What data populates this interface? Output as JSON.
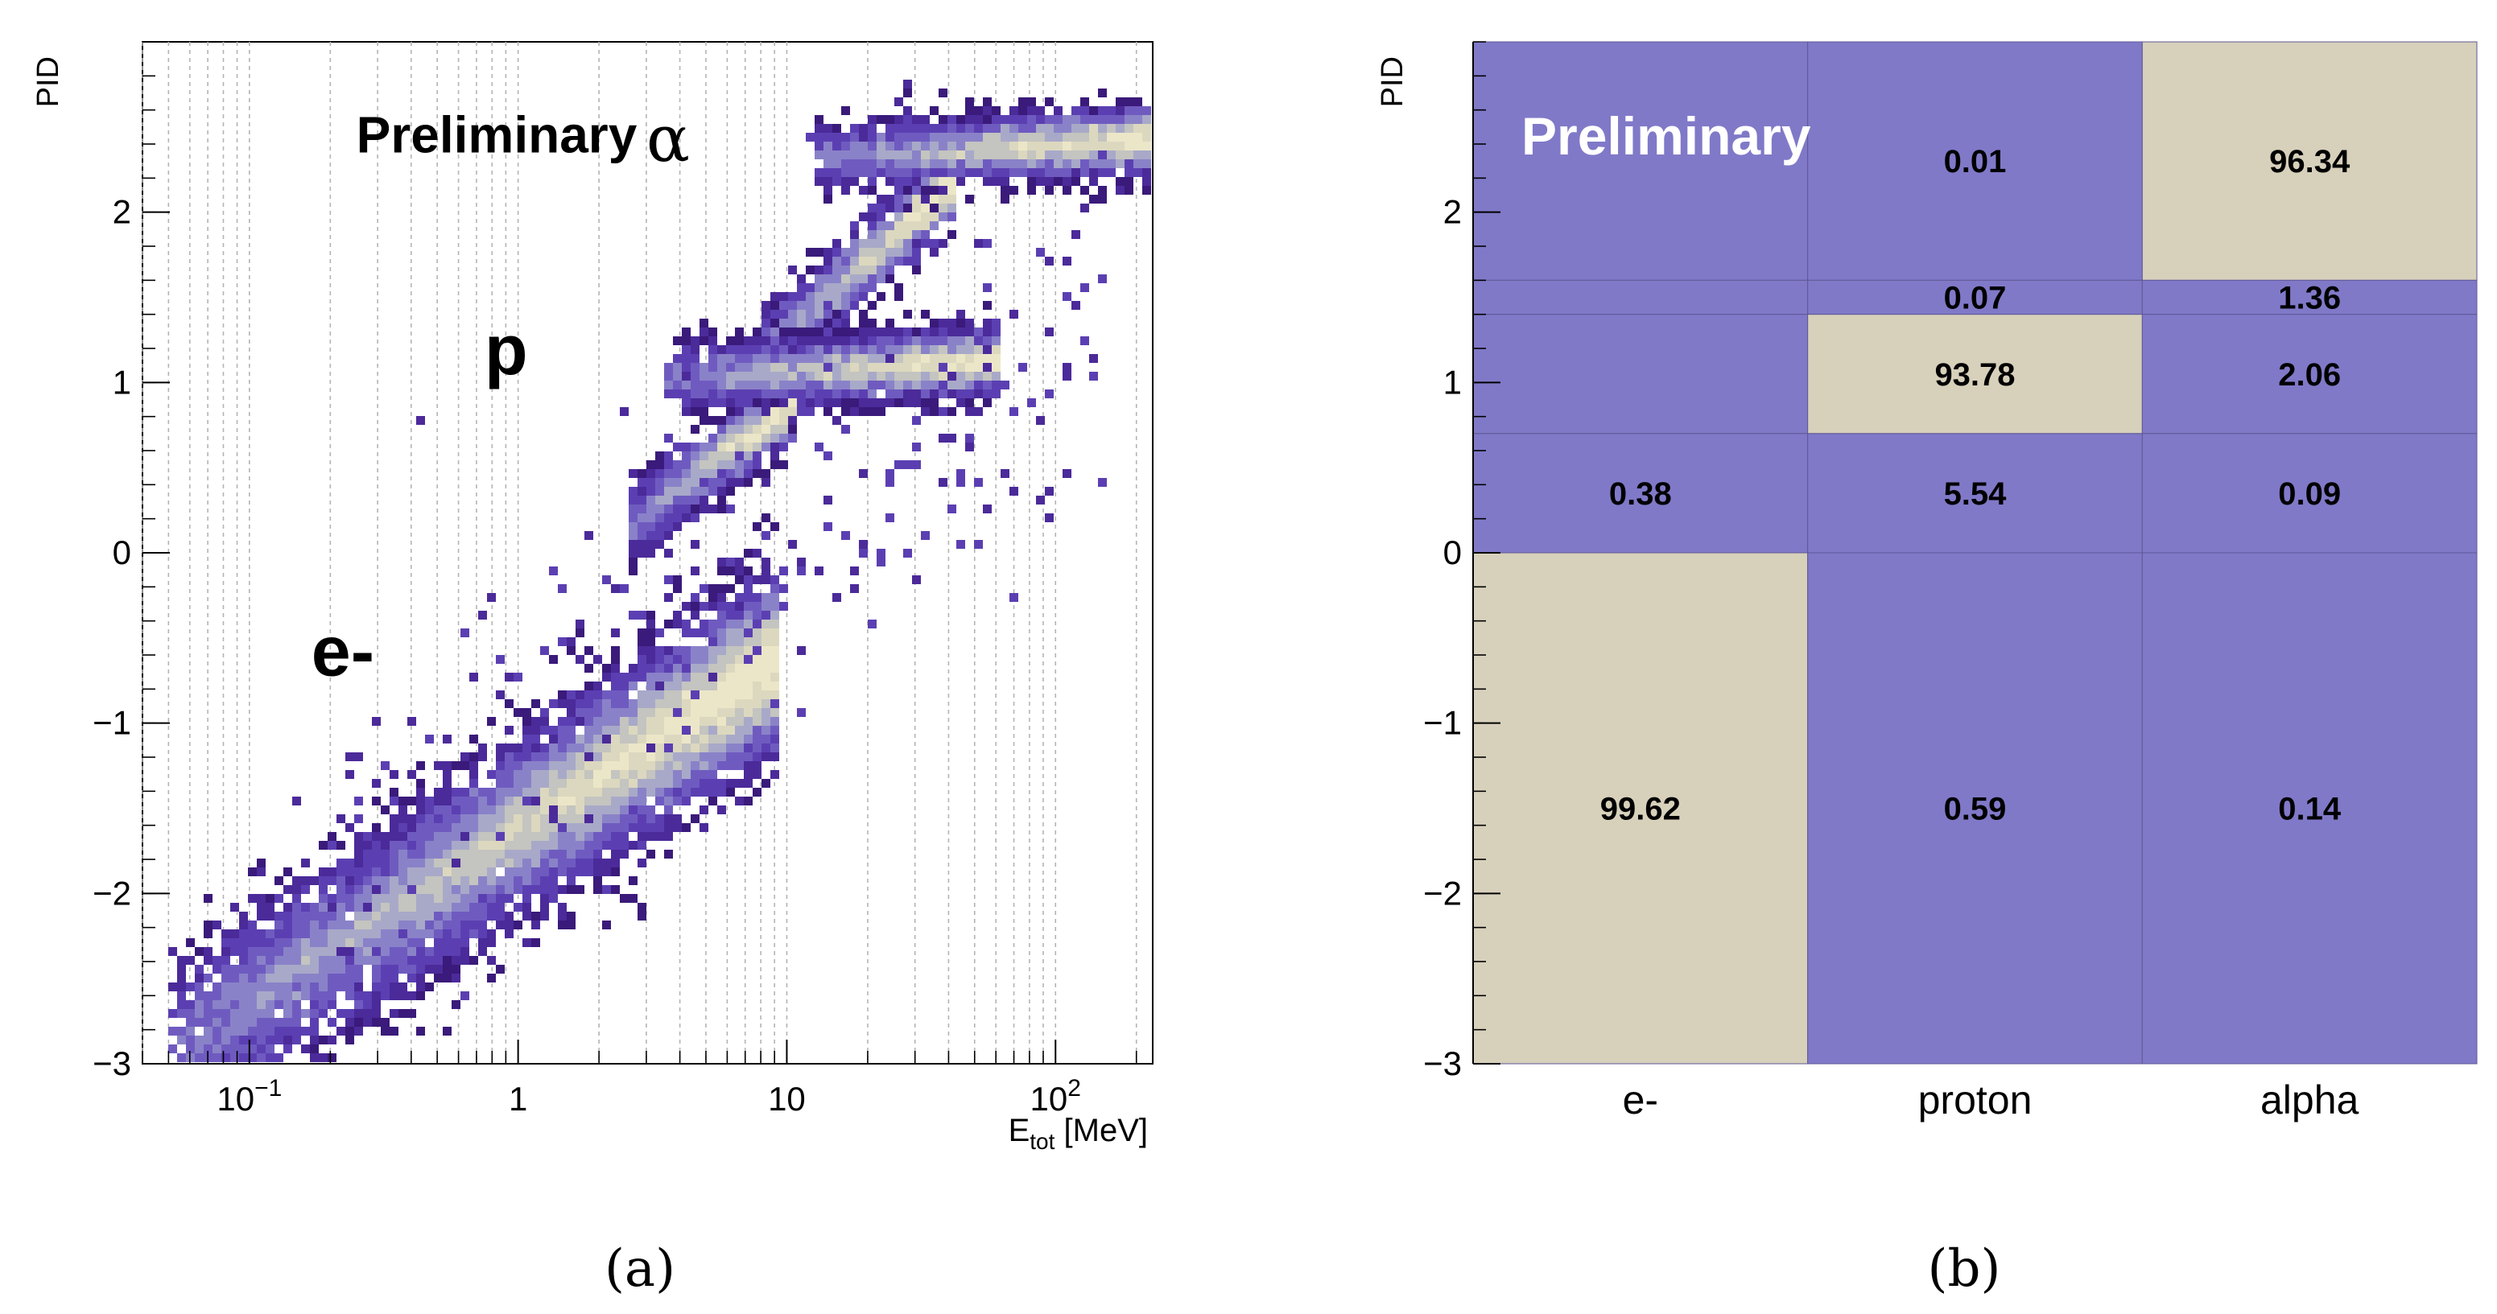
{
  "chart_data": [
    {
      "type": "heatmap",
      "panel_label": "(a)",
      "ylabel": "PID",
      "xlabel_main": "E",
      "xlabel_sub": "tot",
      "xlabel_unit": " [MeV]",
      "xscale": "log",
      "xlim": [
        0.04,
        230
      ],
      "ylim": [
        -3,
        3
      ],
      "grid": "vertical dashed",
      "x_ticks": [
        {
          "value": 0.1,
          "base": "10",
          "exp": "−1"
        },
        {
          "value": 1,
          "base": "1",
          "exp": ""
        },
        {
          "value": 10,
          "base": "10",
          "exp": ""
        },
        {
          "value": 100,
          "base": "10",
          "exp": "2"
        }
      ],
      "y_ticks": [
        {
          "value": -3,
          "label": "−3"
        },
        {
          "value": -2,
          "label": "−2"
        },
        {
          "value": -1,
          "label": "−1"
        },
        {
          "value": 0,
          "label": "0"
        },
        {
          "value": 1,
          "label": "1"
        },
        {
          "value": 2,
          "label": "2"
        }
      ],
      "annotations": [
        {
          "text": "Preliminary",
          "x": 0.25,
          "y": 2.35,
          "style": "bold"
        },
        {
          "text": "α",
          "x": 3.0,
          "y": 2.3,
          "style": "serif"
        },
        {
          "text": "p",
          "x": 0.75,
          "y": 1.05,
          "style": "bold"
        },
        {
          "text": "e-",
          "x": 0.17,
          "y": -0.72,
          "style": "bold"
        }
      ],
      "bands": [
        {
          "name": "electrons",
          "x_range": [
            0.05,
            9
          ],
          "y_at_xmin": -2.9,
          "y_at_xmax": -0.6,
          "width": 0.28
        },
        {
          "name": "protons",
          "x_range": [
            3.5,
            60
          ],
          "y_at_xmin": 1.05,
          "y_at_xmax": 1.15,
          "width": 0.1
        },
        {
          "name": "alphas",
          "x_range": [
            12,
            230
          ],
          "y_at_xmin": 2.35,
          "y_at_xmax": 2.45,
          "width": 0.1
        },
        {
          "name": "p-to-alpha link",
          "x_range": [
            8,
            40
          ],
          "y_at_xmin": 1.2,
          "y_at_xmax": 2.2,
          "width": 0.1
        },
        {
          "name": "e-to-p link",
          "x_range": [
            2.5,
            10
          ],
          "y_at_xmin": 0.2,
          "y_at_xmax": 0.9,
          "width": 0.1
        }
      ]
    },
    {
      "type": "heatmap",
      "panel_label": "(b)",
      "ylabel": "PID",
      "xlabel": "",
      "ylim": [
        -3,
        3
      ],
      "categories": [
        "e-",
        "proton",
        "alpha"
      ],
      "y_ticks": [
        {
          "value": -3,
          "label": "−3"
        },
        {
          "value": -2,
          "label": "−2"
        },
        {
          "value": -1,
          "label": "−1"
        },
        {
          "value": 0,
          "label": "0"
        },
        {
          "value": 1,
          "label": "1"
        },
        {
          "value": 2,
          "label": "2"
        }
      ],
      "annotation": "Preliminary",
      "colors": {
        "high": "#d7d0bb",
        "low": "#8079c8"
      },
      "rows": [
        {
          "y_range": [
            1.6,
            3.0
          ],
          "values": [
            "",
            "0.01",
            "96.34"
          ],
          "high": [
            false,
            false,
            true
          ]
        },
        {
          "y_range": [
            1.4,
            1.6
          ],
          "values": [
            "",
            "0.07",
            "1.36"
          ],
          "high": [
            false,
            false,
            false
          ]
        },
        {
          "y_range": [
            0.7,
            1.4
          ],
          "values": [
            "",
            "93.78",
            "2.06"
          ],
          "high": [
            false,
            true,
            false
          ]
        },
        {
          "y_range": [
            0.0,
            0.7
          ],
          "values": [
            "0.38",
            "5.54",
            "0.09"
          ],
          "high": [
            false,
            false,
            false
          ]
        },
        {
          "y_range": [
            -3.0,
            0.0
          ],
          "values": [
            "99.62",
            "0.59",
            "0.14"
          ],
          "high": [
            true,
            false,
            false
          ]
        }
      ]
    }
  ]
}
